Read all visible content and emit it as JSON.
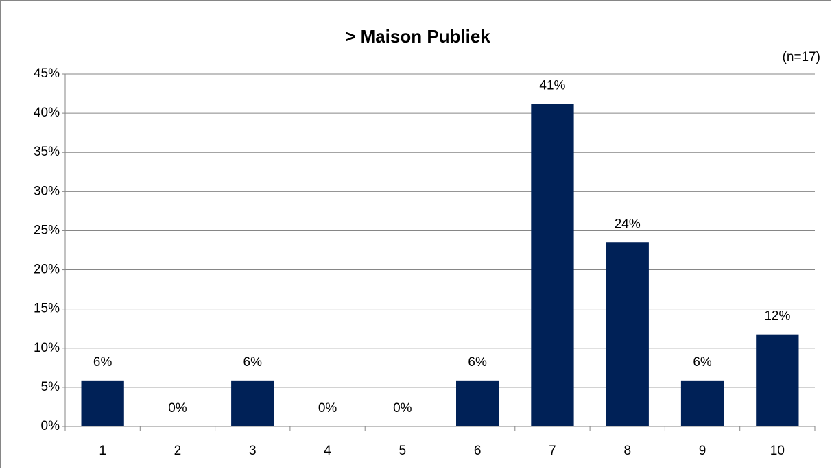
{
  "chart_data": {
    "type": "bar",
    "title": "> Maison Publiek",
    "subtitle": "(n=17)",
    "categories": [
      "1",
      "2",
      "3",
      "4",
      "5",
      "6",
      "7",
      "8",
      "9",
      "10"
    ],
    "values": [
      5.88,
      0,
      5.88,
      0,
      0,
      5.88,
      41.18,
      23.53,
      5.88,
      11.76
    ],
    "value_labels": [
      "6%",
      "0%",
      "6%",
      "0%",
      "0%",
      "6%",
      "41%",
      "24%",
      "6%",
      "12%"
    ],
    "color": "#002157",
    "ylim": [
      0,
      45
    ],
    "yticks": [
      {
        "value": 0,
        "label": "0%"
      },
      {
        "value": 5,
        "label": "5%"
      },
      {
        "value": 10,
        "label": "10%"
      },
      {
        "value": 15,
        "label": "15%"
      },
      {
        "value": 20,
        "label": "20%"
      },
      {
        "value": 25,
        "label": "25%"
      },
      {
        "value": 30,
        "label": "30%"
      },
      {
        "value": 35,
        "label": "35%"
      },
      {
        "value": 40,
        "label": "40%"
      },
      {
        "value": 45,
        "label": "45%"
      }
    ],
    "grid": true
  }
}
